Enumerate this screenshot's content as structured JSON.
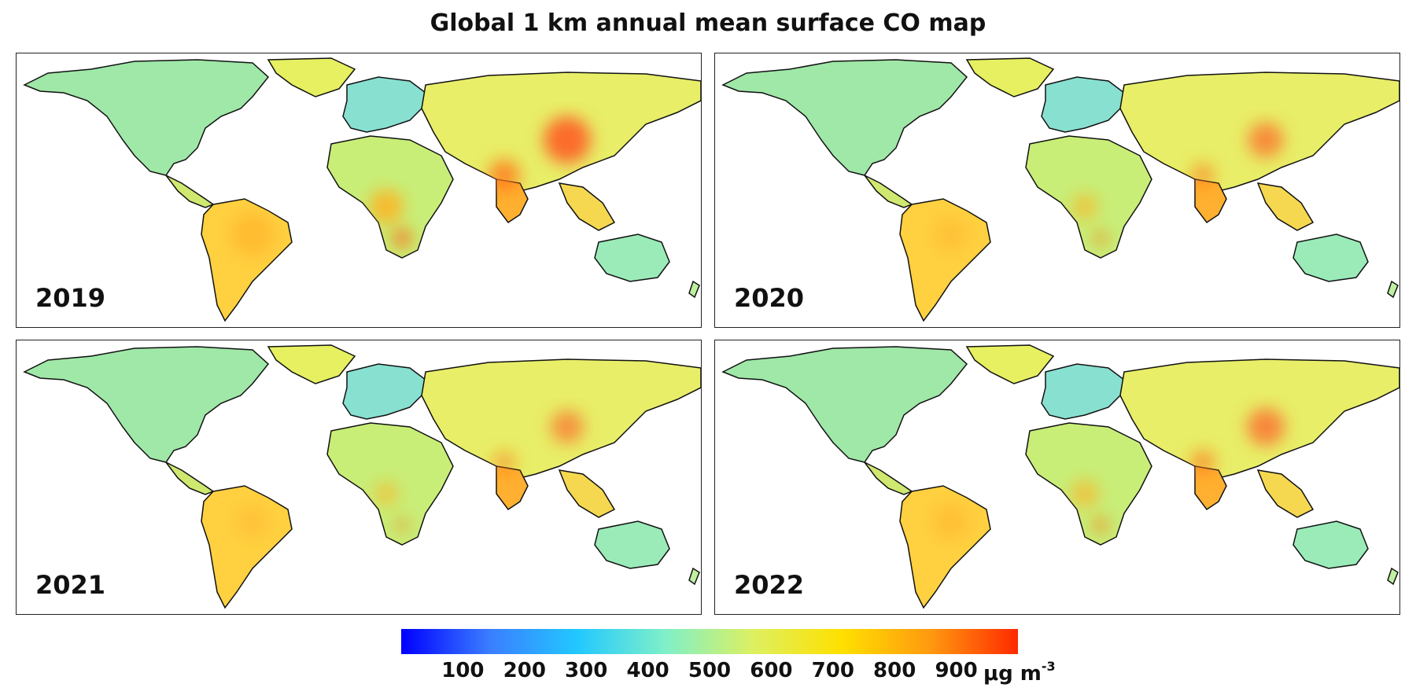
{
  "title": "Global 1 km annual mean surface CO map",
  "panels": [
    {
      "year": "2019",
      "intensity": 1.0
    },
    {
      "year": "2020",
      "intensity": 0.75
    },
    {
      "year": "2021",
      "intensity": 0.7
    },
    {
      "year": "2022",
      "intensity": 0.8
    }
  ],
  "colorbar": {
    "stops": [
      "#0000ff",
      "#3a7dff",
      "#22c8ff",
      "#7ff0c8",
      "#ddf060",
      "#ffe000",
      "#ff9a10",
      "#ff2a00"
    ],
    "ticks": [
      "100",
      "200",
      "300",
      "400",
      "500",
      "600",
      "700",
      "800",
      "900"
    ],
    "range": [
      0,
      1000
    ],
    "unit_base": "μg m",
    "unit_exp": "-3"
  }
}
